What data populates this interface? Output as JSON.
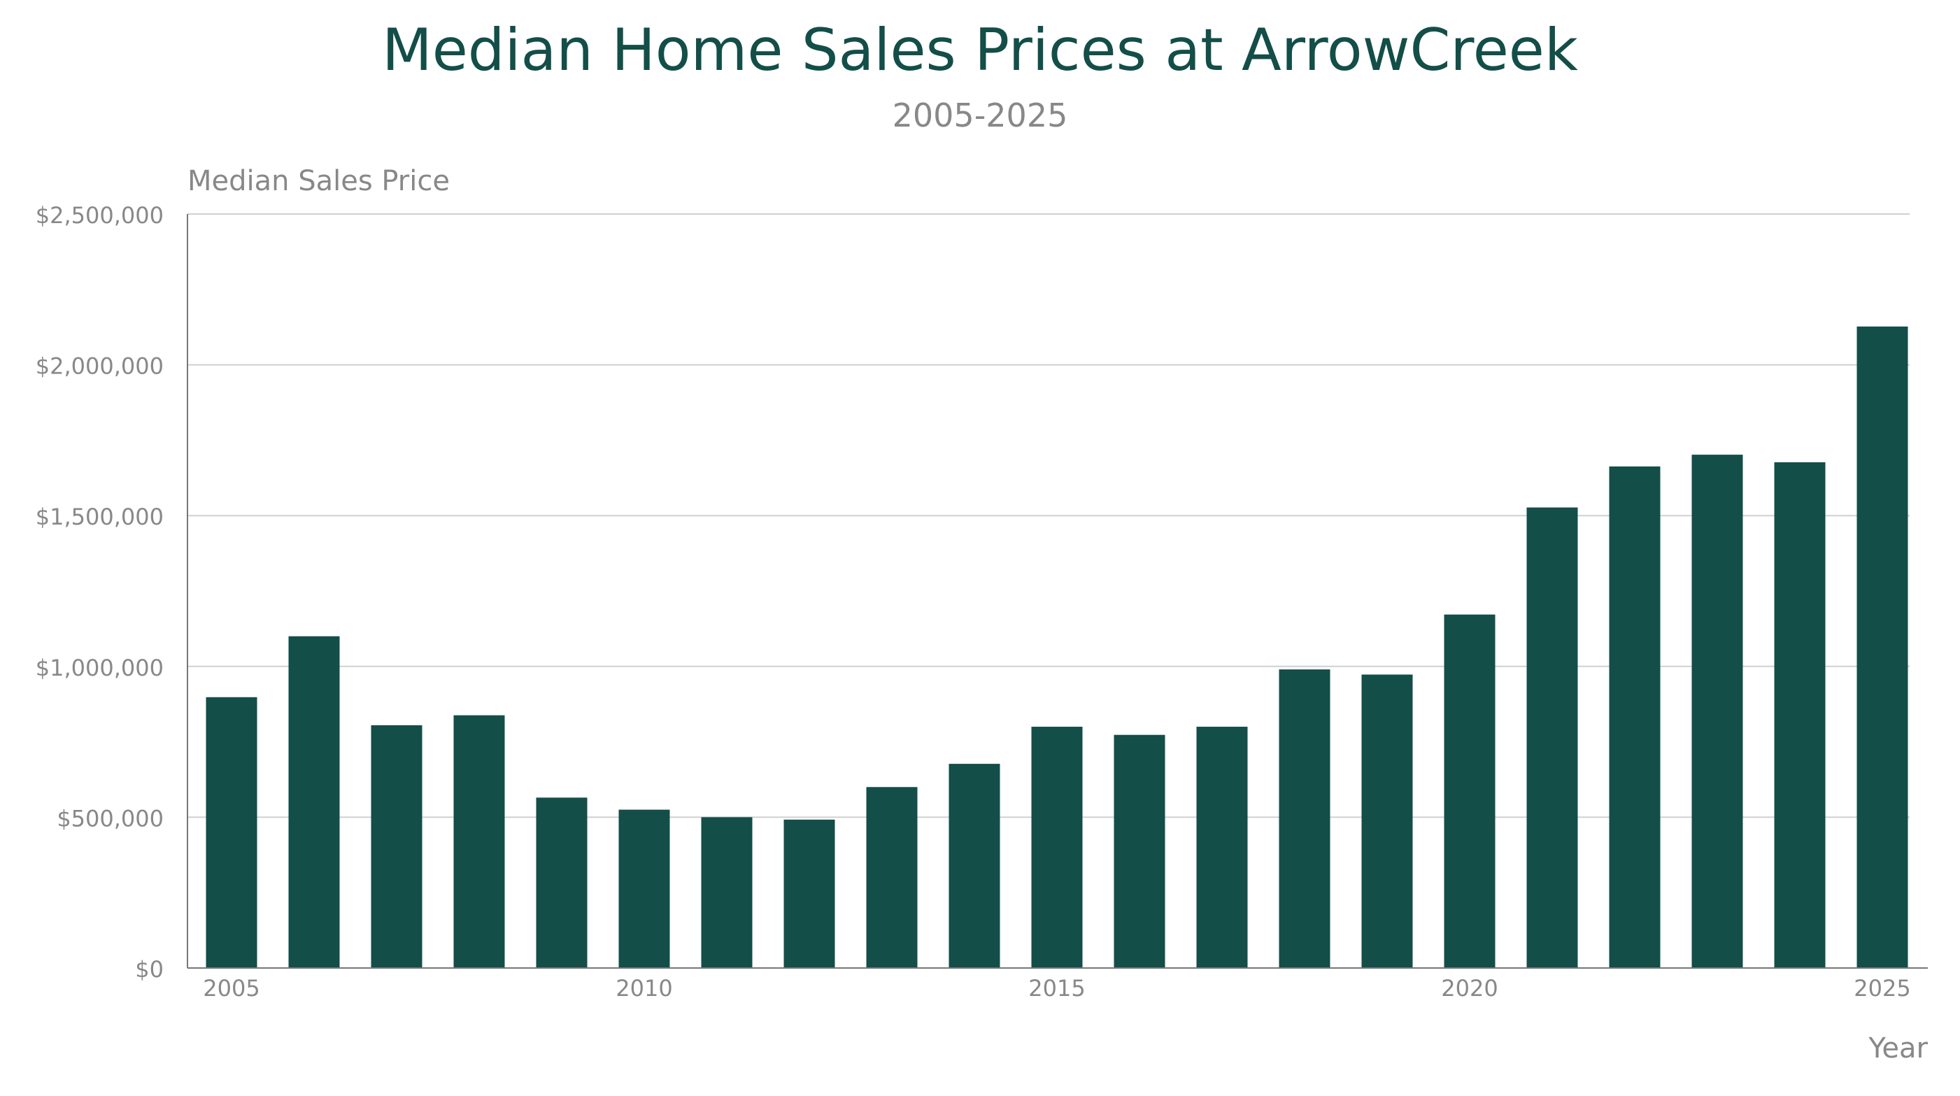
{
  "chart_data": {
    "type": "bar",
    "title": "Median Home Sales Prices at ArrowCreek",
    "subtitle": "2005-2025",
    "xlabel": "Year",
    "ylabel": "Median Sales Price",
    "x": [
      2005,
      2006,
      2007,
      2008,
      2009,
      2010,
      2011,
      2012,
      2013,
      2014,
      2015,
      2016,
      2017,
      2018,
      2019,
      2020,
      2021,
      2022,
      2023,
      2024,
      2025
    ],
    "values": [
      898000,
      1100000,
      805000,
      838000,
      565000,
      525000,
      500000,
      492000,
      600000,
      677000,
      800000,
      773000,
      800000,
      990000,
      973000,
      1172000,
      1527000,
      1663000,
      1702000,
      1677000,
      2127000
    ],
    "ylim": [
      0,
      2500000
    ],
    "y_ticks": [
      0,
      500000,
      1000000,
      1500000,
      2000000,
      2500000
    ],
    "y_tick_labels": [
      "$0",
      "$500,000",
      "$1,000,000",
      "$1,500,000",
      "$2,000,000",
      "$2,500,000"
    ],
    "x_ticks": [
      2005,
      2010,
      2015,
      2020,
      2025
    ],
    "x_tick_labels": [
      "2005",
      "2010",
      "2015",
      "2020",
      "2025"
    ],
    "grid": "horizontal",
    "legend": "none",
    "colors": {
      "bar": "#134e48",
      "title": "#134e48",
      "text": "#888888",
      "grid": "#d0d0d0",
      "axis": "#777777"
    }
  }
}
